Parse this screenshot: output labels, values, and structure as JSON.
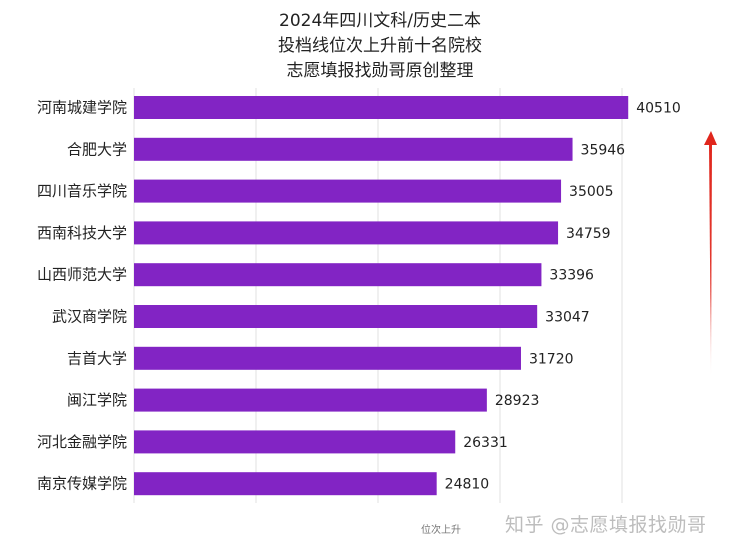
{
  "chart_data": {
    "type": "bar",
    "orientation": "horizontal",
    "title_lines": [
      "2024年四川文科/历史二本",
      "投档线位次上升前十名院校",
      "志愿填报找勋哥原创整理"
    ],
    "categories": [
      "河南城建学院",
      "合肥大学",
      "四川音乐学院",
      "西南科技大学",
      "山西师范大学",
      "武汉商学院",
      "吉首大学",
      "闽江学院",
      "河北金融学院",
      "南京传媒学院"
    ],
    "values": [
      40510,
      35946,
      35005,
      34759,
      33396,
      33047,
      31720,
      28923,
      26331,
      24810
    ],
    "xlabel": "位次上升",
    "ylabel": "",
    "xlim": [
      0,
      40000
    ],
    "x_gridlines": [
      0,
      10000,
      20000,
      30000,
      40000
    ],
    "x_tick_labels_shown": false,
    "grid": true,
    "bar_color": "#8224c4",
    "data_labels": true,
    "annotation": {
      "type": "arrow",
      "direction": "up",
      "color": "#e0261c"
    }
  },
  "watermark": "知乎 @志愿填报找勋哥"
}
